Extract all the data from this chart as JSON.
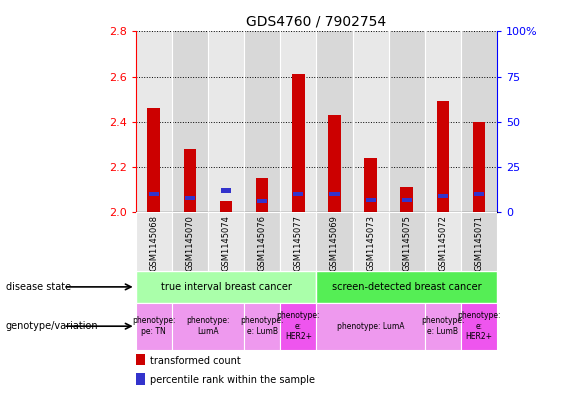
{
  "title": "GDS4760 / 7902754",
  "samples": [
    "GSM1145068",
    "GSM1145070",
    "GSM1145074",
    "GSM1145076",
    "GSM1145077",
    "GSM1145069",
    "GSM1145073",
    "GSM1145075",
    "GSM1145072",
    "GSM1145071"
  ],
  "transformed_count": [
    2.46,
    2.28,
    2.05,
    2.15,
    2.61,
    2.43,
    2.24,
    2.11,
    2.49,
    2.4
  ],
  "percentile_rank_pct": [
    10,
    8,
    12,
    6,
    10,
    10,
    7,
    7,
    9,
    10
  ],
  "ylim_left": [
    2.0,
    2.8
  ],
  "ylim_right": [
    0,
    100
  ],
  "yticks_left": [
    2.0,
    2.2,
    2.4,
    2.6,
    2.8
  ],
  "yticks_right": [
    0,
    25,
    50,
    75,
    100
  ],
  "ytick_labels_right": [
    "0",
    "25",
    "50",
    "75",
    "100%"
  ],
  "bar_color_red": "#cc0000",
  "bar_color_blue": "#3333cc",
  "disease_state_groups": [
    {
      "label": "true interval breast cancer",
      "start": 0,
      "end": 5,
      "color": "#aaffaa"
    },
    {
      "label": "screen-detected breast cancer",
      "start": 5,
      "end": 10,
      "color": "#55ee55"
    }
  ],
  "genotype_groups": [
    {
      "label": "phenotype:\npe: TN",
      "start": 0,
      "end": 1,
      "color": "#ee99ee"
    },
    {
      "label": "phenotype:\nLumA",
      "start": 1,
      "end": 3,
      "color": "#ee99ee"
    },
    {
      "label": "phenotype:\ne: LumB",
      "start": 3,
      "end": 4,
      "color": "#ee99ee"
    },
    {
      "label": "phenotype:\ne:\nHER2+",
      "start": 4,
      "end": 5,
      "color": "#ee55ee"
    },
    {
      "label": "phenotype: LumA",
      "start": 5,
      "end": 8,
      "color": "#ee99ee"
    },
    {
      "label": "phenotype:\ne: LumB",
      "start": 8,
      "end": 9,
      "color": "#ee99ee"
    },
    {
      "label": "phenotype:\ne:\nHER2+",
      "start": 9,
      "end": 10,
      "color": "#ee55ee"
    }
  ],
  "col_bg_even": "#e8e8e8",
  "col_bg_odd": "#d8d8d8",
  "bar_width": 0.35,
  "blue_bar_width": 0.28,
  "blue_bar_height": 0.018,
  "grid_color": "#000000",
  "spine_color": "#000000"
}
